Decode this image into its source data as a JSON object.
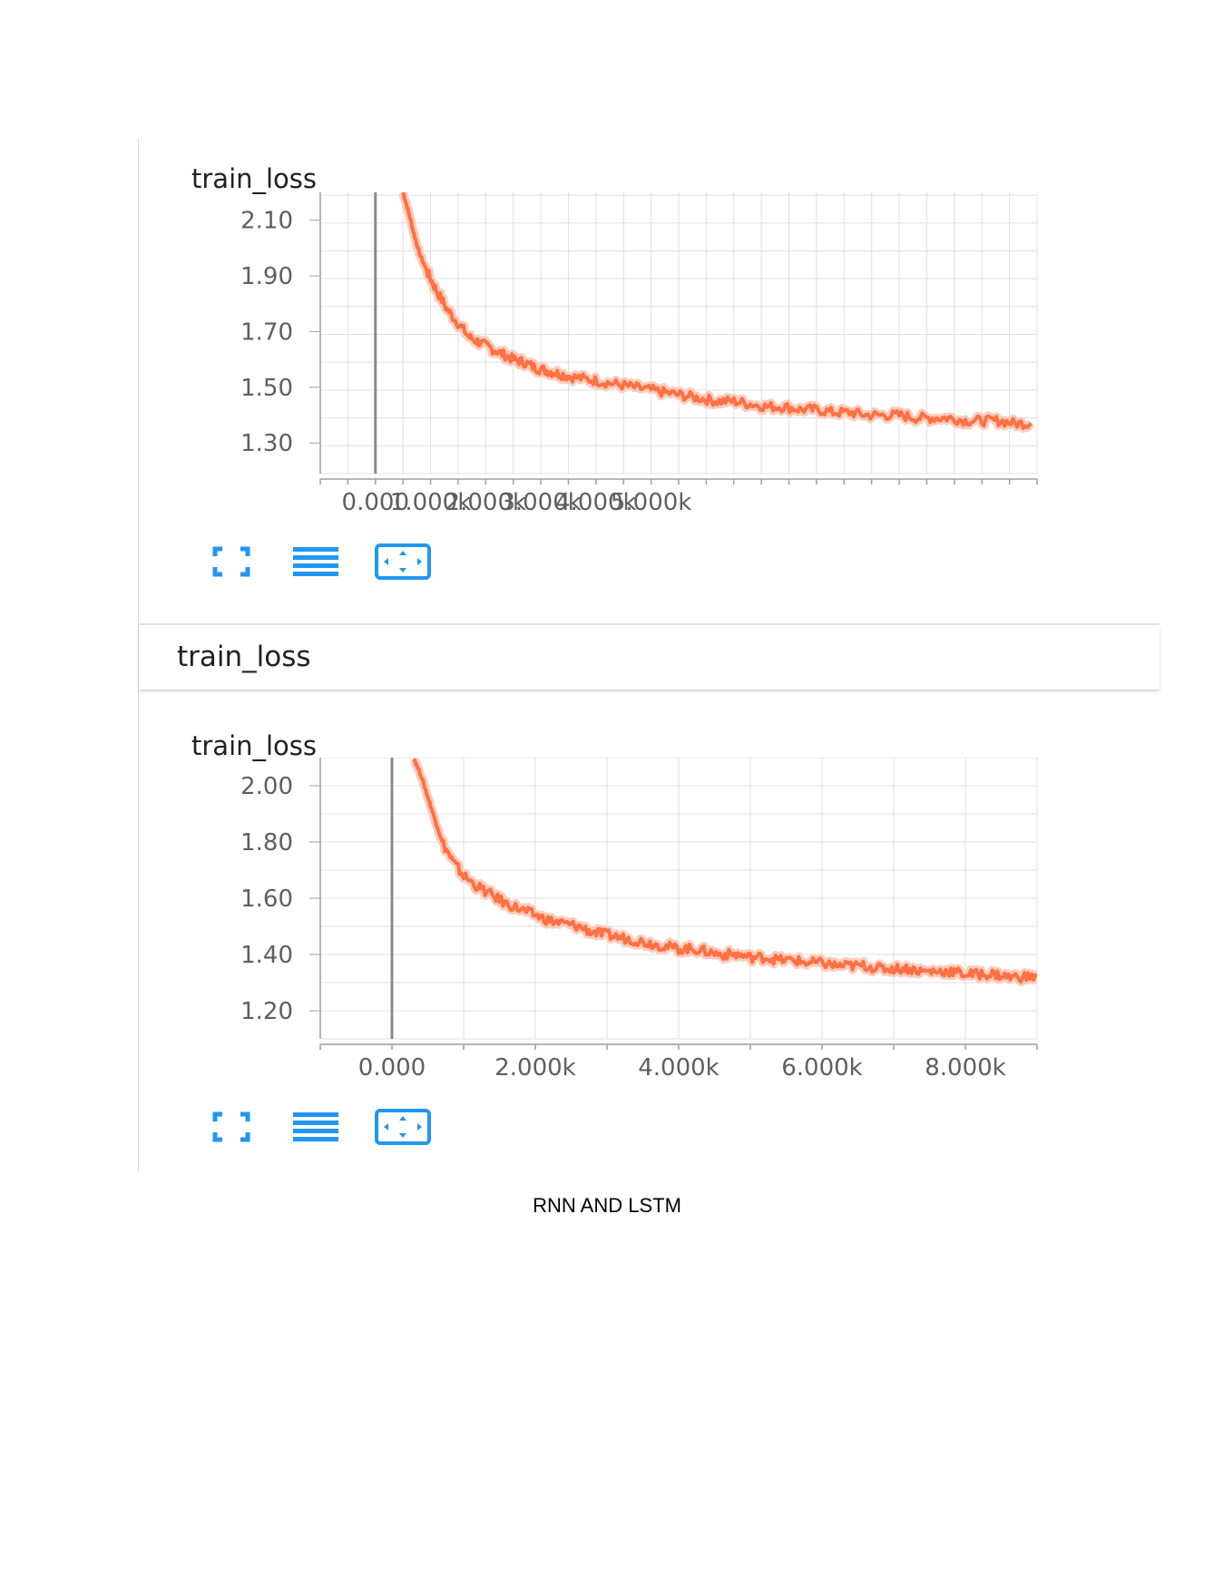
{
  "group": {
    "title": "train_loss"
  },
  "caption": "RNN AND LSTM",
  "colors": {
    "line": "#ff7043",
    "line_light": "#ffccbc",
    "grid": "#e0e0e0",
    "axis": "#9e9e9e",
    "tool_blue": "#2196f3"
  },
  "toolbar_icons": [
    "fullscreen-icon",
    "data-selection-icon",
    "fit-domain-icon"
  ],
  "chart_data": [
    {
      "type": "line",
      "title": "train_loss",
      "xlabel": "",
      "ylabel": "",
      "x_ticks": [
        "0.000",
        "1.000k",
        "2.000k",
        "3.000k",
        "4.000k",
        "5.000k"
      ],
      "x_tick_values": [
        0,
        1000,
        2000,
        3000,
        4000,
        5000
      ],
      "y_ticks": [
        "2.10",
        "1.90",
        "1.70",
        "1.50",
        "1.30"
      ],
      "y_tick_values": [
        2.1,
        1.9,
        1.7,
        1.5,
        1.3
      ],
      "xlim": [
        -1000,
        12000
      ],
      "ylim": [
        1.19,
        2.2
      ],
      "grid": true,
      "series": [
        {
          "x": [
            500,
            600,
            700,
            800,
            950,
            1100,
            1300,
            1500,
            1700,
            1900,
            2100,
            2300,
            2500,
            2700,
            2900,
            3100,
            3300,
            3500,
            3800,
            4100,
            4400,
            4700,
            5000,
            5300,
            5600,
            5900,
            6200,
            6500,
            6800,
            7100,
            7400,
            7700,
            8000,
            8300,
            8600,
            8900,
            9200,
            9500,
            9800,
            10100,
            10400,
            10700,
            11000,
            11300,
            11600,
            11900
          ],
          "y": [
            2.2,
            2.13,
            2.05,
            1.98,
            1.91,
            1.85,
            1.78,
            1.73,
            1.68,
            1.66,
            1.64,
            1.62,
            1.6,
            1.59,
            1.57,
            1.56,
            1.55,
            1.54,
            1.53,
            1.52,
            1.51,
            1.5,
            1.49,
            1.48,
            1.47,
            1.46,
            1.45,
            1.45,
            1.44,
            1.43,
            1.43,
            1.42,
            1.42,
            1.41,
            1.41,
            1.4,
            1.4,
            1.4,
            1.39,
            1.39,
            1.39,
            1.38,
            1.38,
            1.38,
            1.37,
            1.37
          ]
        }
      ]
    },
    {
      "type": "line",
      "title": "train_loss",
      "xlabel": "",
      "ylabel": "",
      "x_ticks": [
        "0.000",
        "2.000k",
        "4.000k",
        "6.000k",
        "8.000k"
      ],
      "x_tick_values": [
        0,
        2000,
        4000,
        6000,
        8000
      ],
      "y_ticks": [
        "2.00",
        "1.80",
        "1.60",
        "1.40",
        "1.20"
      ],
      "y_tick_values": [
        2.0,
        1.8,
        1.6,
        1.4,
        1.2
      ],
      "xlim": [
        -1000,
        9000
      ],
      "ylim": [
        1.1,
        2.1
      ],
      "grid": true,
      "series": [
        {
          "x": [
            300,
            400,
            500,
            600,
            700,
            850,
            1000,
            1200,
            1400,
            1600,
            1800,
            2000,
            2200,
            2400,
            2600,
            2800,
            3000,
            3200,
            3400,
            3600,
            3800,
            4000,
            4200,
            4400,
            4600,
            4800,
            5000,
            5200,
            5400,
            5600,
            5800,
            6000,
            6200,
            6400,
            6600,
            6800,
            7000,
            7200,
            7400,
            7600,
            7800,
            8000,
            8200,
            8400,
            8600,
            8800,
            9000
          ],
          "y": [
            2.1,
            2.04,
            1.96,
            1.88,
            1.8,
            1.73,
            1.68,
            1.64,
            1.61,
            1.58,
            1.56,
            1.54,
            1.52,
            1.51,
            1.5,
            1.48,
            1.47,
            1.46,
            1.45,
            1.44,
            1.43,
            1.42,
            1.42,
            1.41,
            1.4,
            1.4,
            1.39,
            1.39,
            1.38,
            1.38,
            1.37,
            1.37,
            1.36,
            1.36,
            1.36,
            1.35,
            1.35,
            1.35,
            1.34,
            1.34,
            1.34,
            1.33,
            1.33,
            1.33,
            1.32,
            1.32,
            1.32
          ]
        }
      ]
    }
  ]
}
